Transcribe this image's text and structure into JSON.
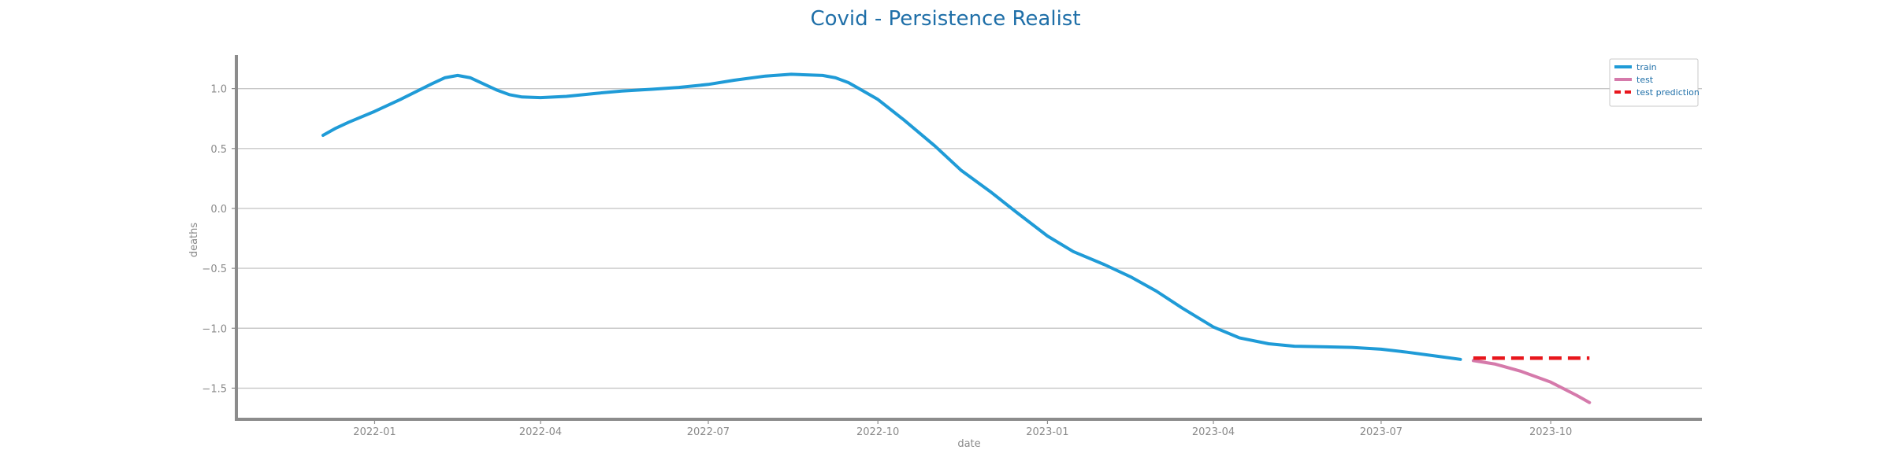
{
  "chart_data": {
    "type": "line",
    "title": "Covid - Persistence Realist",
    "xlabel": "date",
    "ylabel": "deaths",
    "xlim": [
      "2021-10-18",
      "2023-12-22"
    ],
    "ylim": [
      -1.76,
      1.28
    ],
    "grid": "horizontal",
    "legend_position": "top-right",
    "x_ticks": [
      {
        "value": "2022-01-01",
        "label": "2022-01"
      },
      {
        "value": "2022-04-01",
        "label": "2022-04"
      },
      {
        "value": "2022-07-01",
        "label": "2022-07"
      },
      {
        "value": "2022-10-01",
        "label": "2022-10"
      },
      {
        "value": "2023-01-01",
        "label": "2023-01"
      },
      {
        "value": "2023-04-01",
        "label": "2023-04"
      },
      {
        "value": "2023-07-01",
        "label": "2023-07"
      },
      {
        "value": "2023-10-01",
        "label": "2023-10"
      }
    ],
    "y_ticks": [
      {
        "value": 1.0,
        "label": "1.0"
      },
      {
        "value": 0.5,
        "label": "0.5"
      },
      {
        "value": 0.0,
        "label": "0.0"
      },
      {
        "value": -0.5,
        "label": "−0.5"
      },
      {
        "value": -1.0,
        "label": "−1.0"
      },
      {
        "value": -1.5,
        "label": "−1.5"
      }
    ],
    "series": [
      {
        "name": "train",
        "color": "#1f9bd7",
        "style": "solid",
        "points": [
          [
            "2021-12-04",
            0.61
          ],
          [
            "2021-12-11",
            0.67
          ],
          [
            "2021-12-18",
            0.72
          ],
          [
            "2022-01-01",
            0.81
          ],
          [
            "2022-01-15",
            0.91
          ],
          [
            "2022-02-01",
            1.04
          ],
          [
            "2022-02-08",
            1.09
          ],
          [
            "2022-02-15",
            1.11
          ],
          [
            "2022-02-22",
            1.09
          ],
          [
            "2022-03-01",
            1.04
          ],
          [
            "2022-03-08",
            0.99
          ],
          [
            "2022-03-15",
            0.95
          ],
          [
            "2022-03-22",
            0.93
          ],
          [
            "2022-04-01",
            0.925
          ],
          [
            "2022-04-15",
            0.935
          ],
          [
            "2022-05-01",
            0.96
          ],
          [
            "2022-05-15",
            0.98
          ],
          [
            "2022-06-01",
            0.995
          ],
          [
            "2022-06-15",
            1.01
          ],
          [
            "2022-07-01",
            1.035
          ],
          [
            "2022-07-15",
            1.07
          ],
          [
            "2022-08-01",
            1.105
          ],
          [
            "2022-08-15",
            1.12
          ],
          [
            "2022-09-01",
            1.11
          ],
          [
            "2022-09-08",
            1.09
          ],
          [
            "2022-09-15",
            1.05
          ],
          [
            "2022-09-22",
            0.99
          ],
          [
            "2022-10-01",
            0.91
          ],
          [
            "2022-10-15",
            0.74
          ],
          [
            "2022-11-01",
            0.52
          ],
          [
            "2022-11-15",
            0.32
          ],
          [
            "2022-12-01",
            0.14
          ],
          [
            "2022-12-15",
            -0.03
          ],
          [
            "2023-01-01",
            -0.23
          ],
          [
            "2023-01-15",
            -0.36
          ],
          [
            "2023-02-01",
            -0.47
          ],
          [
            "2023-02-15",
            -0.57
          ],
          [
            "2023-03-01",
            -0.69
          ],
          [
            "2023-03-15",
            -0.83
          ],
          [
            "2023-04-01",
            -0.99
          ],
          [
            "2023-04-15",
            -1.08
          ],
          [
            "2023-05-01",
            -1.13
          ],
          [
            "2023-05-15",
            -1.15
          ],
          [
            "2023-06-01",
            -1.155
          ],
          [
            "2023-06-15",
            -1.16
          ],
          [
            "2023-07-01",
            -1.175
          ],
          [
            "2023-07-15",
            -1.2
          ],
          [
            "2023-08-01",
            -1.235
          ],
          [
            "2023-08-13",
            -1.26
          ]
        ]
      },
      {
        "name": "test",
        "color": "#d57aab",
        "style": "solid",
        "points": [
          [
            "2023-08-20",
            -1.27
          ],
          [
            "2023-09-01",
            -1.3
          ],
          [
            "2023-09-15",
            -1.36
          ],
          [
            "2023-10-01",
            -1.45
          ],
          [
            "2023-10-15",
            -1.56
          ],
          [
            "2023-10-22",
            -1.62
          ]
        ]
      },
      {
        "name": "test prediction",
        "color": "#e8161c",
        "style": "dashed",
        "points": [
          [
            "2023-08-20",
            -1.25
          ],
          [
            "2023-10-22",
            -1.25
          ]
        ]
      }
    ]
  }
}
